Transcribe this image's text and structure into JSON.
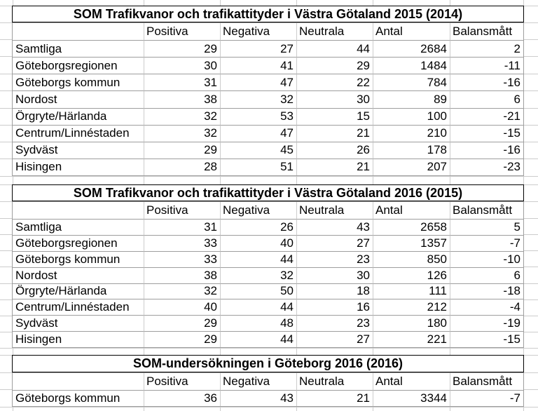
{
  "columns": [
    "Positiva",
    "Negativa",
    "Neutrala",
    "Antal",
    "Balansmått"
  ],
  "sections": [
    {
      "title": "SOM Trafikvanor och trafikattityder i Västra Götaland 2015 (2014)",
      "rows": [
        {
          "label": "Samtliga",
          "values": [
            "29",
            "27",
            "44",
            "2684",
            "2"
          ]
        },
        {
          "label": "Göteborgsregionen",
          "values": [
            "30",
            "41",
            "29",
            "1484",
            "-11"
          ]
        },
        {
          "label": "Göteborgs kommun",
          "values": [
            "31",
            "47",
            "22",
            "784",
            "-16"
          ]
        },
        {
          "label": "Nordost",
          "values": [
            "38",
            "32",
            "30",
            "89",
            "6"
          ]
        },
        {
          "label": "Örgryte/Härlanda",
          "values": [
            "32",
            "53",
            "15",
            "100",
            "-21"
          ]
        },
        {
          "label": "Centrum/Linnéstaden",
          "values": [
            "32",
            "47",
            "21",
            "210",
            "-15"
          ]
        },
        {
          "label": "Sydväst",
          "values": [
            "29",
            "45",
            "26",
            "178",
            "-16"
          ]
        },
        {
          "label": "Hisingen",
          "values": [
            "28",
            "51",
            "21",
            "207",
            "-23"
          ]
        }
      ]
    },
    {
      "title": "SOM Trafikvanor och trafikattityder i Västra Götaland 2016 (2015)",
      "rows": [
        {
          "label": "Samtliga",
          "values": [
            "31",
            "26",
            "43",
            "2658",
            "5"
          ]
        },
        {
          "label": "Göteborgsregionen",
          "values": [
            "33",
            "40",
            "27",
            "1357",
            "-7"
          ]
        },
        {
          "label": "Göteborgs kommun",
          "values": [
            "33",
            "44",
            "23",
            "850",
            "-10"
          ]
        },
        {
          "label": "Nordost",
          "values": [
            "38",
            "32",
            "30",
            "126",
            "6"
          ]
        },
        {
          "label": "Örgryte/Härlanda",
          "values": [
            "32",
            "50",
            "18",
            "111",
            "-18"
          ]
        },
        {
          "label": "Centrum/Linnéstaden",
          "values": [
            "40",
            "44",
            "16",
            "212",
            "-4"
          ]
        },
        {
          "label": "Sydväst",
          "values": [
            "29",
            "48",
            "23",
            "180",
            "-19"
          ]
        },
        {
          "label": "Hisingen",
          "values": [
            "29",
            "44",
            "27",
            "221",
            "-15"
          ]
        }
      ]
    },
    {
      "title": "SOM-undersökningen i Göteborg 2016 (2016)",
      "rows": [
        {
          "label": "Göteborgs kommun",
          "values": [
            "36",
            "43",
            "21",
            "3344",
            "-7"
          ]
        }
      ]
    }
  ]
}
